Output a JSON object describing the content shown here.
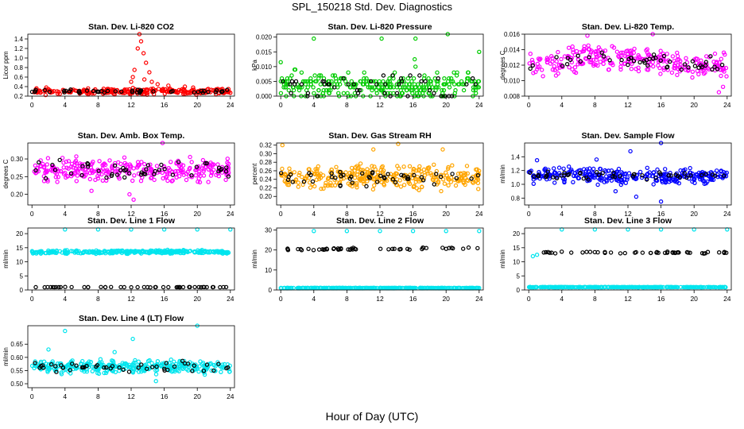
{
  "title": "SPL_150218  Std. Dev. Diagnostics",
  "xlabel": "Hour of Day (UTC)",
  "chart_data": [
    {
      "type": "scatter",
      "title": "Stan. Dev. Li-820 CO2",
      "ylabel": "Licor ppm",
      "xlim": [
        -0.5,
        24.5
      ],
      "ylim": [
        0.2,
        1.5
      ],
      "xticks": [
        0,
        4,
        8,
        12,
        16,
        20,
        24
      ],
      "yticks": [
        0.2,
        0.4,
        0.6,
        0.8,
        1.0,
        1.2,
        1.4
      ],
      "series": [
        {
          "color": "#ff0000",
          "stats": {
            "count": 260,
            "base": 0.3,
            "spread": 0.05,
            "seed": 11
          },
          "outliers": [
            {
              "x": 13,
              "y": 1.5
            },
            {
              "x": 13.2,
              "y": 1.35
            },
            {
              "x": 12.8,
              "y": 1.2
            },
            {
              "x": 13.5,
              "y": 1.1
            },
            {
              "x": 13.8,
              "y": 0.9
            },
            {
              "x": 12.4,
              "y": 0.75
            },
            {
              "x": 14.2,
              "y": 0.7
            },
            {
              "x": 12.2,
              "y": 0.6
            },
            {
              "x": 13.6,
              "y": 0.55
            },
            {
              "x": 14.5,
              "y": 0.5
            },
            {
              "x": 15.2,
              "y": 0.45
            },
            {
              "x": 12,
              "y": 0.5
            },
            {
              "x": 18.5,
              "y": 0.4
            },
            {
              "x": 16.5,
              "y": 0.42
            },
            {
              "x": 19.5,
              "y": 0.38
            }
          ]
        },
        {
          "color": "#000000",
          "stats": {
            "count": 48,
            "base": 0.3,
            "spread": 0.03,
            "seed": 12
          },
          "outliers": []
        }
      ]
    },
    {
      "type": "scatter",
      "title": "Stan. Dev. Li-820 Pressure",
      "ylabel": "kPa",
      "xlim": [
        -0.5,
        24.5
      ],
      "ylim": [
        0,
        0.021
      ],
      "xticks": [
        0,
        4,
        8,
        12,
        16,
        20,
        24
      ],
      "yticks": [
        0,
        0.005,
        0.01,
        0.015,
        0.02
      ],
      "yticklabels": [
        "0.000",
        "0.005",
        "0.010",
        "0.015",
        "0.020"
      ],
      "series": [
        {
          "color": "#00cc00",
          "stats": {
            "count": 300,
            "base": 0.0035,
            "spread": 0.0035,
            "seed": 21,
            "quant": 0.001
          },
          "outliers": [
            {
              "x": 0,
              "y": 0.0115
            },
            {
              "x": 4,
              "y": 0.0195
            },
            {
              "x": 12.2,
              "y": 0.0195
            },
            {
              "x": 16.3,
              "y": 0.0195
            },
            {
              "x": 20.2,
              "y": 0.021
            },
            {
              "x": 16.2,
              "y": 0.0125
            },
            {
              "x": 24,
              "y": 0.015
            },
            {
              "x": 16.3,
              "y": 0.01
            }
          ]
        },
        {
          "color": "#000000",
          "stats": {
            "count": 48,
            "base": 0.0035,
            "spread": 0.0035,
            "seed": 22,
            "quant": 0.001
          },
          "outliers": []
        }
      ]
    },
    {
      "type": "scatter",
      "title": "Stan. Dev. Li-820 Temp.",
      "ylabel": "degrees C",
      "xlim": [
        -0.5,
        24.5
      ],
      "ylim": [
        0.008,
        0.016
      ],
      "xticks": [
        0,
        4,
        8,
        12,
        16,
        20,
        24
      ],
      "yticks": [
        0.008,
        0.01,
        0.012,
        0.014,
        0.016
      ],
      "yticklabels": [
        "0.008",
        "0.010",
        "0.012",
        "0.014",
        "0.016"
      ],
      "series": [
        {
          "color": "#ff00ff",
          "stats": {
            "count": 280,
            "base": 0.0125,
            "spread": 0.0013,
            "seed": 31,
            "trend": "temp"
          },
          "outliers": [
            {
              "x": 7.1,
              "y": 0.0158
            },
            {
              "x": 15,
              "y": 0.016
            },
            {
              "x": 23,
              "y": 0.0085
            },
            {
              "x": 23.5,
              "y": 0.0092
            }
          ]
        },
        {
          "color": "#000000",
          "stats": {
            "count": 48,
            "base": 0.0125,
            "spread": 0.0009,
            "seed": 32,
            "trend": "temp"
          },
          "outliers": []
        }
      ]
    },
    {
      "type": "scatter",
      "title": "Stan. Dev. Amb. Box Temp.",
      "ylabel": "degrees C",
      "xlim": [
        -0.5,
        24.5
      ],
      "ylim": [
        0.17,
        0.345
      ],
      "xticks": [
        0,
        4,
        8,
        12,
        16,
        20,
        24
      ],
      "yticks": [
        0.2,
        0.25,
        0.3
      ],
      "yticklabels": [
        "0.20",
        "0.25",
        "0.30"
      ],
      "series": [
        {
          "color": "#ff00ff",
          "stats": {
            "count": 300,
            "base": 0.268,
            "spread": 0.025,
            "seed": 41
          },
          "outliers": [
            {
              "x": 15.8,
              "y": 0.345
            },
            {
              "x": 11.8,
              "y": 0.2
            },
            {
              "x": 12.3,
              "y": 0.185
            },
            {
              "x": 7.2,
              "y": 0.21
            }
          ]
        },
        {
          "color": "#000000",
          "stats": {
            "count": 48,
            "base": 0.268,
            "spread": 0.02,
            "seed": 42
          },
          "outliers": []
        }
      ]
    },
    {
      "type": "scatter",
      "title": "Stan. Dev. Gas Stream RH",
      "ylabel": "percent",
      "xlim": [
        -0.5,
        24.5
      ],
      "ylim": [
        0.18,
        0.325
      ],
      "xticks": [
        0,
        4,
        8,
        12,
        16,
        20,
        24
      ],
      "yticks": [
        0.2,
        0.22,
        0.24,
        0.26,
        0.28,
        0.3,
        0.32
      ],
      "yticklabels": [
        "0.20",
        "0.22",
        "0.24",
        "0.26",
        "0.28",
        "0.30",
        "0.32"
      ],
      "series": [
        {
          "color": "#ffa500",
          "stats": {
            "count": 320,
            "base": 0.245,
            "spread": 0.022,
            "seed": 51
          },
          "outliers": [
            {
              "x": 0.2,
              "y": 0.32
            },
            {
              "x": 14.2,
              "y": 0.323
            },
            {
              "x": 19.6,
              "y": 0.31
            },
            {
              "x": 11.2,
              "y": 0.31
            }
          ]
        },
        {
          "color": "#000000",
          "stats": {
            "count": 48,
            "base": 0.245,
            "spread": 0.015,
            "seed": 52
          },
          "outliers": []
        }
      ]
    },
    {
      "type": "scatter",
      "title": "Stan. Dev. Sample Flow",
      "ylabel": "ml/min",
      "xlim": [
        -0.5,
        24.5
      ],
      "ylim": [
        0.7,
        1.6
      ],
      "xticks": [
        0,
        4,
        8,
        12,
        16,
        20,
        24
      ],
      "yticks": [
        0.8,
        1.0,
        1.2,
        1.4
      ],
      "yticklabels": [
        "0.8",
        "1.0",
        "1.2",
        "1.4"
      ],
      "series": [
        {
          "color": "#0000ff",
          "stats": {
            "count": 300,
            "base": 1.12,
            "spread": 0.09,
            "seed": 61
          },
          "outliers": [
            {
              "x": 16,
              "y": 1.6
            },
            {
              "x": 16,
              "y": 0.75
            },
            {
              "x": 12.3,
              "y": 1.48
            },
            {
              "x": 1,
              "y": 1.35
            },
            {
              "x": 8.2,
              "y": 1.36
            },
            {
              "x": 13,
              "y": 0.82
            },
            {
              "x": 10.5,
              "y": 0.9
            }
          ]
        },
        {
          "color": "#000000",
          "stats": {
            "count": 48,
            "base": 1.13,
            "spread": 0.05,
            "seed": 62
          },
          "outliers": []
        }
      ]
    },
    {
      "type": "scatter",
      "title": "Stan. Dev. Line 1 Flow",
      "ylabel": "ml/min",
      "xlim": [
        -0.5,
        24.5
      ],
      "ylim": [
        0,
        22
      ],
      "xticks": [
        0,
        4,
        8,
        12,
        16,
        20,
        24
      ],
      "yticks": [
        0,
        5,
        10,
        15,
        20
      ],
      "yticklabels": [
        "0",
        "5",
        "10",
        "15",
        "20"
      ],
      "series": [
        {
          "color": "#00e5ee",
          "stats": {
            "count": 300,
            "base": 13.5,
            "spread": 0.5,
            "seed": 71
          },
          "outliers": [
            {
              "x": 4,
              "y": 21.5
            },
            {
              "x": 8,
              "y": 21.5
            },
            {
              "x": 12,
              "y": 21.5
            },
            {
              "x": 16,
              "y": 21.5
            },
            {
              "x": 20,
              "y": 21.5
            },
            {
              "x": 24,
              "y": 21.5
            }
          ]
        },
        {
          "color": "#000000",
          "stats": {
            "count": 48,
            "base": 1,
            "spread": 0.05,
            "seed": 72
          },
          "outliers": []
        }
      ]
    },
    {
      "type": "scatter",
      "title": "Stan. Dev. Line 2 Flow",
      "ylabel": "ml/min",
      "xlim": [
        -0.5,
        24.5
      ],
      "ylim": [
        0,
        31
      ],
      "xticks": [
        0,
        4,
        8,
        12,
        16,
        20,
        24
      ],
      "yticks": [
        0,
        10,
        20,
        30
      ],
      "yticklabels": [
        "0",
        "10",
        "20",
        "30"
      ],
      "series": [
        {
          "color": "#00e5ee",
          "stats": {
            "count": 300,
            "base": 1,
            "spread": 0.08,
            "seed": 81
          },
          "outliers": [
            {
              "x": 4,
              "y": 29.5
            },
            {
              "x": 8,
              "y": 29.5
            },
            {
              "x": 12,
              "y": 29.5
            },
            {
              "x": 16,
              "y": 29.5
            },
            {
              "x": 20,
              "y": 29.5
            },
            {
              "x": 24,
              "y": 29.5
            }
          ]
        },
        {
          "color": "#000000",
          "stats": {
            "count": 48,
            "base": 20.6,
            "spread": 0.4,
            "seed": 82,
            "trend": "rise"
          },
          "outliers": []
        }
      ]
    },
    {
      "type": "scatter",
      "title": "Stan. Dev. Line 3 Flow",
      "ylabel": "ml/min",
      "xlim": [
        -0.5,
        24.5
      ],
      "ylim": [
        0,
        22
      ],
      "xticks": [
        0,
        4,
        8,
        12,
        16,
        20,
        24
      ],
      "yticks": [
        0,
        5,
        10,
        15,
        20
      ],
      "yticklabels": [
        "0",
        "5",
        "10",
        "15",
        "20"
      ],
      "series": [
        {
          "color": "#00e5ee",
          "stats": {
            "count": 300,
            "base": 1,
            "spread": 0.06,
            "seed": 91
          },
          "outliers": [
            {
              "x": 4,
              "y": 21.5
            },
            {
              "x": 8,
              "y": 21.5
            },
            {
              "x": 12,
              "y": 21.5
            },
            {
              "x": 16,
              "y": 21.5
            },
            {
              "x": 20,
              "y": 21.5
            },
            {
              "x": 24,
              "y": 21.5
            },
            {
              "x": 0.5,
              "y": 12
            },
            {
              "x": 1,
              "y": 12.5
            }
          ]
        },
        {
          "color": "#000000",
          "stats": {
            "count": 48,
            "base": 13.3,
            "spread": 0.3,
            "seed": 92
          },
          "outliers": []
        }
      ]
    },
    {
      "type": "scatter",
      "title": "Stan. Dev. Line 4 (LT) Flow",
      "ylabel": "ml/min",
      "xlim": [
        -0.5,
        24.5
      ],
      "ylim": [
        0.485,
        0.72
      ],
      "xticks": [
        0,
        4,
        8,
        12,
        16,
        20,
        24
      ],
      "yticks": [
        0.5,
        0.55,
        0.6,
        0.65
      ],
      "yticklabels": [
        "0.50",
        "0.55",
        "0.60",
        "0.65"
      ],
      "series": [
        {
          "color": "#00e5ee",
          "stats": {
            "count": 320,
            "base": 0.565,
            "spread": 0.02,
            "seed": 101
          },
          "outliers": [
            {
              "x": 20,
              "y": 0.72
            },
            {
              "x": 4,
              "y": 0.7
            },
            {
              "x": 12.2,
              "y": 0.67
            },
            {
              "x": 2,
              "y": 0.63
            },
            {
              "x": 10,
              "y": 0.62
            },
            {
              "x": 15,
              "y": 0.51
            }
          ]
        },
        {
          "color": "#000000",
          "stats": {
            "count": 48,
            "base": 0.565,
            "spread": 0.015,
            "seed": 102
          },
          "outliers": []
        }
      ]
    }
  ]
}
